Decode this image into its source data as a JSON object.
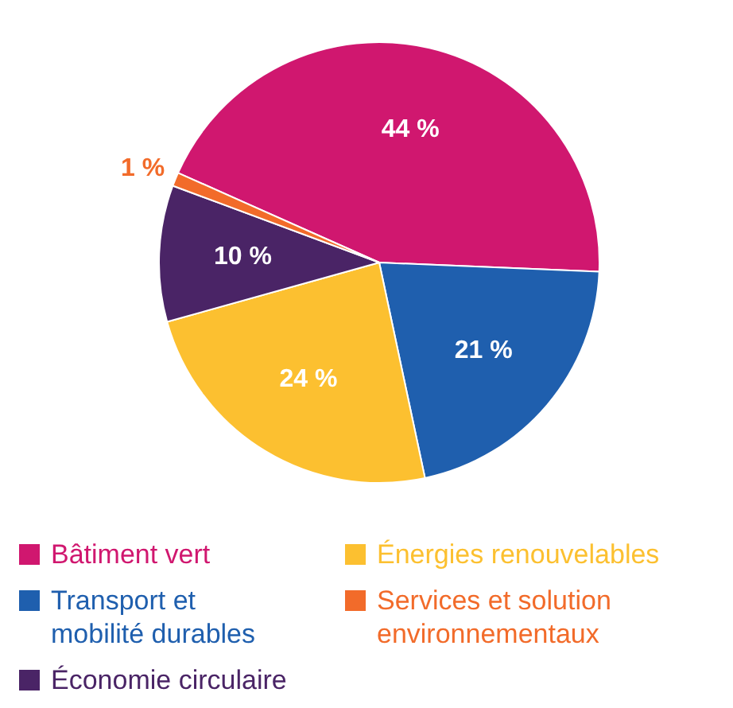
{
  "chart_data": {
    "type": "pie",
    "categories": [
      "Bâtiment vert",
      "Transport et mobilité durables",
      "Énergies renouvelables",
      "Économie circulaire",
      "Services et solution environnementaux"
    ],
    "values": [
      44,
      21,
      24,
      10,
      1
    ],
    "colors": [
      "#d0176f",
      "#1f5fae",
      "#fcc030",
      "#4a2466",
      "#f26b2a"
    ],
    "value_labels": [
      "44 %",
      "21 %",
      "24 %",
      "10 %",
      "1 %"
    ],
    "legend": "bottom"
  }
}
